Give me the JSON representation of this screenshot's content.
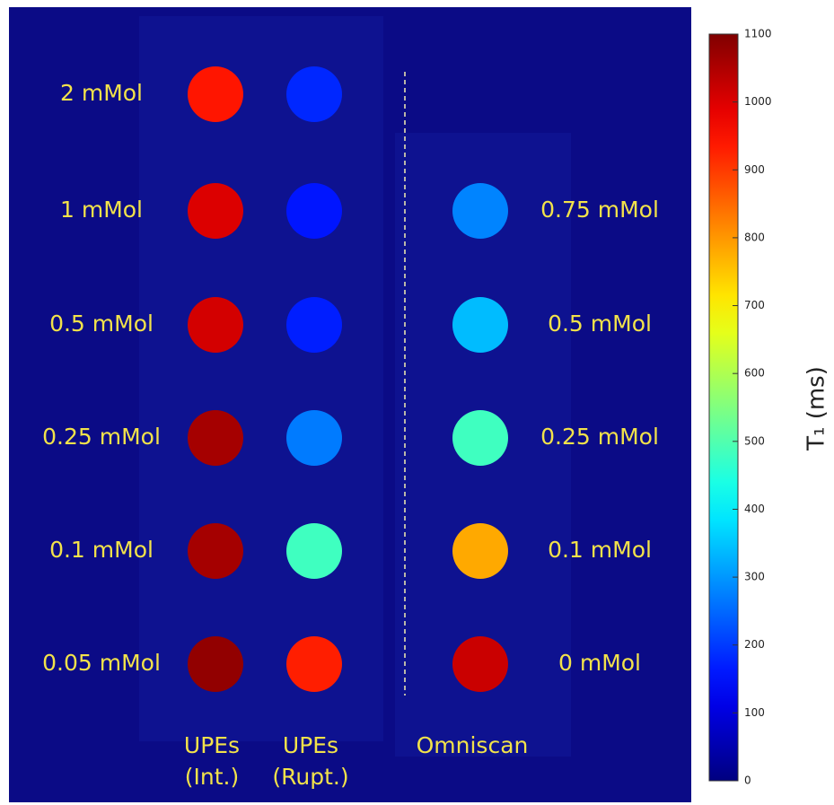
{
  "left_labels": [
    "2 mMol",
    "1 mMol",
    "0.5 mMol",
    "0.25 mMol",
    "0.1 mMol",
    "0.05 mMol"
  ],
  "right_labels": [
    "0.75 mMol",
    "0.5 mMol",
    "0.25 mMol",
    "0.1 mMol",
    "0 mMol"
  ],
  "columns": [
    {
      "label": [
        "UPEs",
        "(Int.)"
      ],
      "t1": [
        940,
        1000,
        1010,
        1060,
        1060,
        1080
      ]
    },
    {
      "label": [
        "UPEs",
        "(Rupt.)"
      ],
      "t1": [
        180,
        160,
        170,
        270,
        480,
        930
      ]
    },
    {
      "label": [
        "Omniscan"
      ],
      "t1": [
        280,
        340,
        480,
        780,
        1020
      ]
    }
  ],
  "colorbar": {
    "label": "T₁ (ms)",
    "lim": [
      0,
      1100
    ],
    "ticks": [
      0,
      100,
      200,
      300,
      400,
      500,
      600,
      700,
      800,
      900,
      1000,
      1100
    ]
  }
}
